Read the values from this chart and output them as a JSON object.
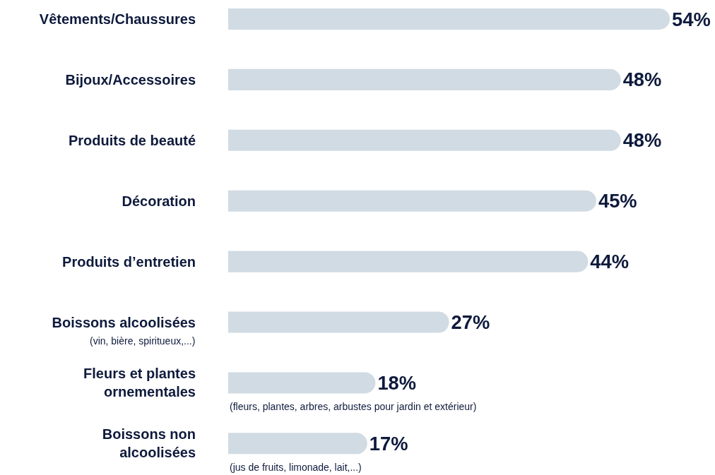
{
  "chart_data": {
    "type": "bar",
    "orientation": "horizontal",
    "categories": [
      "Vêtements/Chaussures",
      "Bijoux/Accessoires",
      "Produits de beauté",
      "Décoration",
      "Produits d’entretien",
      "Boissons alcoolisées",
      "Fleurs et plantes ornementales",
      "Boissons non alcoolisées"
    ],
    "values": [
      54,
      48,
      48,
      45,
      44,
      27,
      18,
      17
    ],
    "value_labels": [
      "54%",
      "48%",
      "48%",
      "45%",
      "44%",
      "27%",
      "18%",
      "17%"
    ],
    "color": "#d1dbe3",
    "tick_labels": "y",
    "grid": false,
    "legend": false,
    "annotations": [
      "(vin, bière, spiritueux,...)",
      {
        "text": "(fleurs, plantes, arbres, arbustes pour jardin et extérieur)",
        "x": 0,
        "y": "Fleurs et plantes ornementales"
      },
      {
        "text": "(jus de fruits, limonade, lait,...)",
        "x": 0,
        "y": "Boissons non alcoolisées"
      }
    ]
  }
}
